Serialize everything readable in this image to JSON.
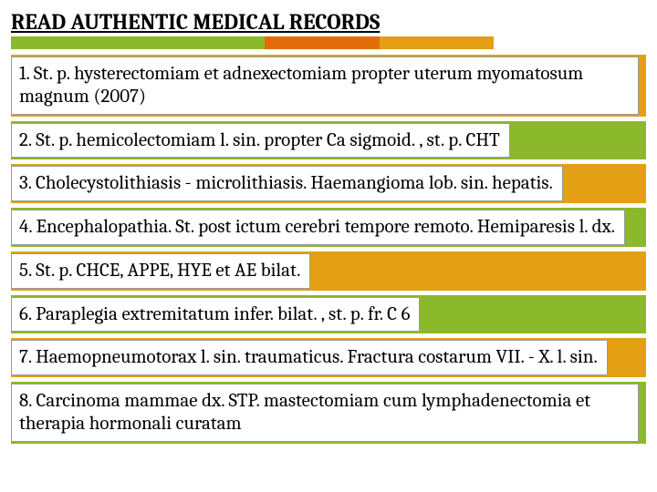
{
  "title": "READ AUTHENTIC MEDICAL RECORDS",
  "stripe_colors": [
    "#8cb82b",
    "#e36c09",
    "#e3a014",
    "#ffffff"
  ],
  "stripe_widths": [
    "40%",
    "18%",
    "18%",
    "24%"
  ],
  "row_colors": {
    "orange": "#e3a014",
    "green": "#8cb82b"
  },
  "cell_bg": "#ffffff",
  "cell_border": "#9a9a9a",
  "font_family": "Cambria, Georgia, serif",
  "title_fontsize": 24,
  "cell_fontsize": 21,
  "items": [
    {
      "color": "orange",
      "text": "1. St. p. hysterectomiam et adnexectomiam propter uterum myomatosum magnum (2007)"
    },
    {
      "color": "green",
      "text": "2. St. p. hemicolectomiam l. sin. propter Ca sigmoid. , st. p. CHT"
    },
    {
      "color": "orange",
      "text": "3. Cholecystolithiasis - microlithiasis. Haemangioma lob. sin. hepatis."
    },
    {
      "color": "green",
      "text": "4. Encephalopathia. St. post ictum cerebri tempore remoto. Hemiparesis l. dx."
    },
    {
      "color": "orange",
      "text": "5. St. p. CHCE, APPE, HYE et AE bilat."
    },
    {
      "color": "green",
      "text": "6. Paraplegia extremitatum infer. bilat. , st. p. fr. C 6"
    },
    {
      "color": "orange",
      "text": "7. Haemopneumotorax l. sin. traumaticus. Fractura costarum VII. - X. l. sin."
    },
    {
      "color": "green",
      "text": "8. Carcinoma mammae dx. STP. mastectomiam cum lymphadenectomia et therapia hormonali curatam"
    }
  ]
}
